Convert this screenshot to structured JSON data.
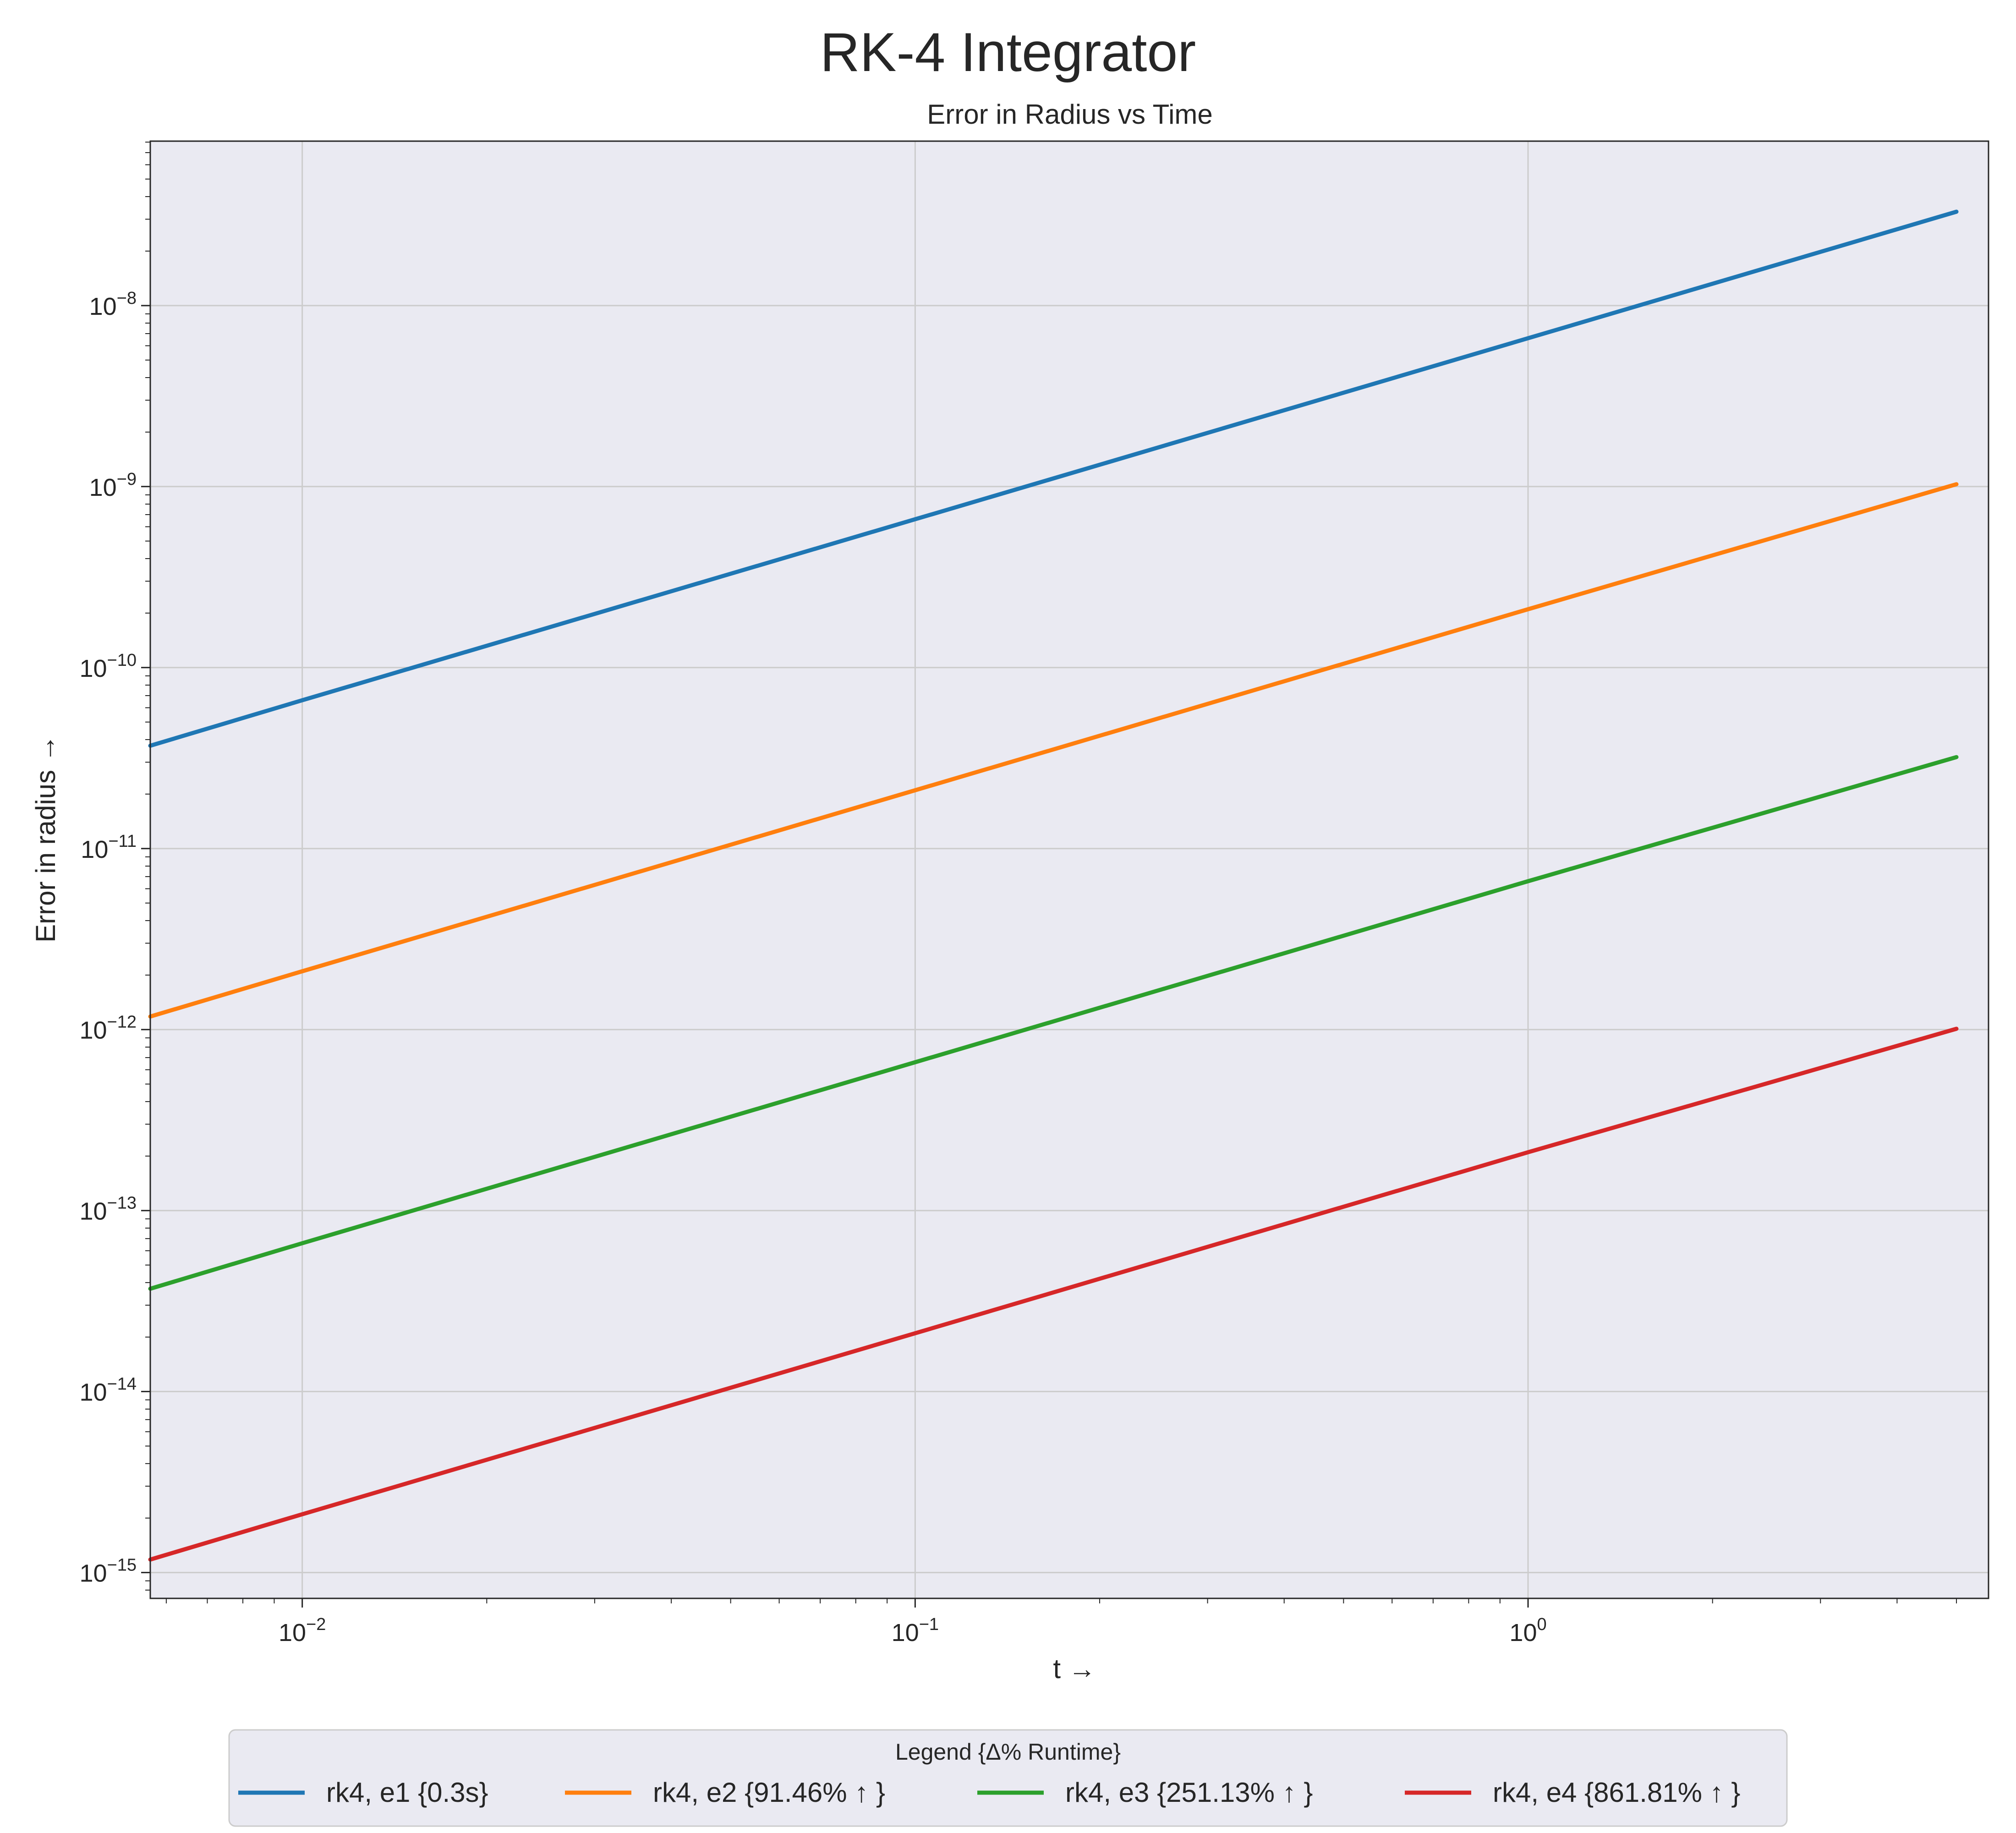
{
  "chart_data": {
    "type": "line",
    "title": "RK-4 Integrator",
    "subtitle": "Error in Radius vs Time",
    "xlabel": "t →",
    "ylabel": "Error in radius →",
    "xscale": "log",
    "yscale": "log",
    "xlim": [
      0.00565,
      5.64
    ],
    "ylim": [
      7.2e-16,
      8.1e-08
    ],
    "grid": true,
    "x_ticks": [
      {
        "value": 0.01,
        "base": "10",
        "exp": "−2"
      },
      {
        "value": 0.1,
        "base": "10",
        "exp": "−1"
      },
      {
        "value": 1,
        "base": "10",
        "exp": "0"
      }
    ],
    "y_ticks": [
      {
        "value": 1e-08,
        "base": "10",
        "exp": "−8"
      },
      {
        "value": 1e-09,
        "base": "10",
        "exp": "−9"
      },
      {
        "value": 1e-10,
        "base": "10",
        "exp": "−10"
      },
      {
        "value": 1e-11,
        "base": "10",
        "exp": "−11"
      },
      {
        "value": 1e-12,
        "base": "10",
        "exp": "−12"
      },
      {
        "value": 1e-13,
        "base": "10",
        "exp": "−13"
      },
      {
        "value": 1e-14,
        "base": "10",
        "exp": "−14"
      },
      {
        "value": 1e-15,
        "base": "10",
        "exp": "−15"
      }
    ],
    "series": [
      {
        "name": "rk4, e1 {0.3s}",
        "color": "#1f77b4",
        "x": [
          0.00565,
          0.01,
          0.1,
          1,
          5
        ],
        "y": [
          3.7e-11,
          6.6e-11,
          6.6e-10,
          6.6e-09,
          3.3e-08
        ]
      },
      {
        "name": "rk4, e2 {91.46% ↑ }",
        "color": "#ff7f0e",
        "x": [
          0.00565,
          0.01,
          0.1,
          1,
          5
        ],
        "y": [
          1.18e-12,
          2.1e-12,
          2.1e-11,
          2.1e-10,
          1.03e-09
        ]
      },
      {
        "name": "rk4, e3 {251.13% ↑ }",
        "color": "#2ca02c",
        "x": [
          0.00565,
          0.01,
          0.1,
          1,
          5
        ],
        "y": [
          3.7e-14,
          6.6e-14,
          6.6e-13,
          6.6e-12,
          3.2e-11
        ]
      },
      {
        "name": "rk4, e4 {861.81% ↑ }",
        "color": "#d62728",
        "x": [
          0.00565,
          0.01,
          0.1,
          1,
          5
        ],
        "y": [
          1.18e-15,
          2.1e-15,
          2.1e-14,
          2.1e-13,
          1.01e-12
        ]
      }
    ],
    "legend": {
      "title": "Legend {Δ% Runtime}",
      "placement": "bottom-center"
    }
  },
  "colors": {
    "plot_background": "#eaeaf2",
    "grid": "#cccccc",
    "axes": "#262626",
    "legend_background": "#eaeaf2"
  }
}
